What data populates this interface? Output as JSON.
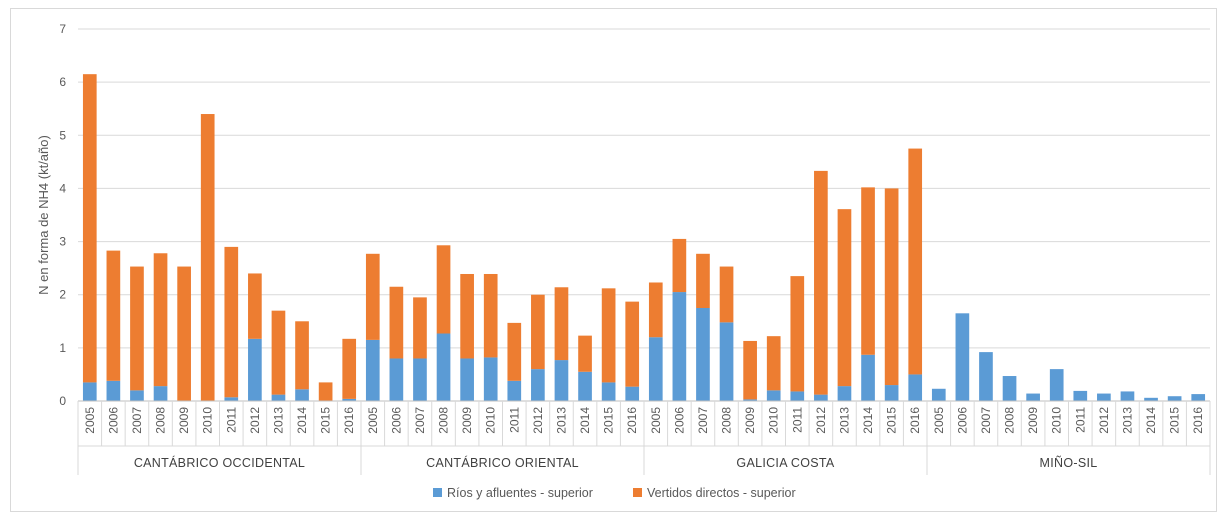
{
  "chart_data": {
    "type": "bar",
    "stacked": true,
    "ylabel": "N en forma de NH4 (kt/año)",
    "ylim": [
      0,
      7
    ],
    "yticks": [
      "0",
      "1",
      "2",
      "3",
      "4",
      "5",
      "6",
      "7"
    ],
    "grid": true,
    "legend_position": "bottom",
    "groups": [
      {
        "name": "CANTÁBRICO OCCIDENTAL"
      },
      {
        "name": "CANTÁBRICO ORIENTAL"
      },
      {
        "name": "GALICIA COSTA"
      },
      {
        "name": "MIÑO-SIL"
      }
    ],
    "categories": [
      "2005",
      "2006",
      "2007",
      "2008",
      "2009",
      "2010",
      "2011",
      "2012",
      "2013",
      "2014",
      "2015",
      "2016"
    ],
    "series": [
      {
        "name": "Ríos y afluentes - superior",
        "color": "#5b9bd5",
        "values": [
          [
            0.35,
            0.38,
            0.2,
            0.28,
            0.0,
            0.0,
            0.07,
            1.17,
            0.12,
            0.22,
            0.0,
            0.04
          ],
          [
            1.15,
            0.8,
            0.8,
            1.27,
            0.8,
            0.82,
            0.38,
            0.6,
            0.77,
            0.55,
            0.35,
            0.27
          ],
          [
            1.2,
            2.05,
            1.75,
            1.48,
            0.03,
            0.2,
            0.18,
            0.12,
            0.28,
            0.87,
            0.3,
            0.5
          ],
          [
            0.23,
            1.65,
            0.92,
            0.47,
            0.14,
            0.6,
            0.19,
            0.14,
            0.18,
            0.06,
            0.09,
            0.13
          ]
        ]
      },
      {
        "name": "Vertidos directos - superior",
        "color": "#ed7d31",
        "values": [
          [
            5.8,
            2.45,
            2.33,
            2.5,
            2.53,
            5.4,
            2.83,
            1.23,
            1.58,
            1.28,
            0.35,
            1.13
          ],
          [
            1.62,
            1.35,
            1.15,
            1.66,
            1.59,
            1.57,
            1.09,
            1.4,
            1.37,
            0.68,
            1.77,
            1.6
          ],
          [
            1.03,
            1.0,
            1.02,
            1.05,
            1.1,
            1.02,
            2.17,
            4.21,
            3.33,
            3.15,
            3.7,
            4.25
          ],
          [
            0,
            0,
            0,
            0,
            0,
            0,
            0,
            0,
            0,
            0,
            0,
            0
          ]
        ]
      }
    ]
  }
}
